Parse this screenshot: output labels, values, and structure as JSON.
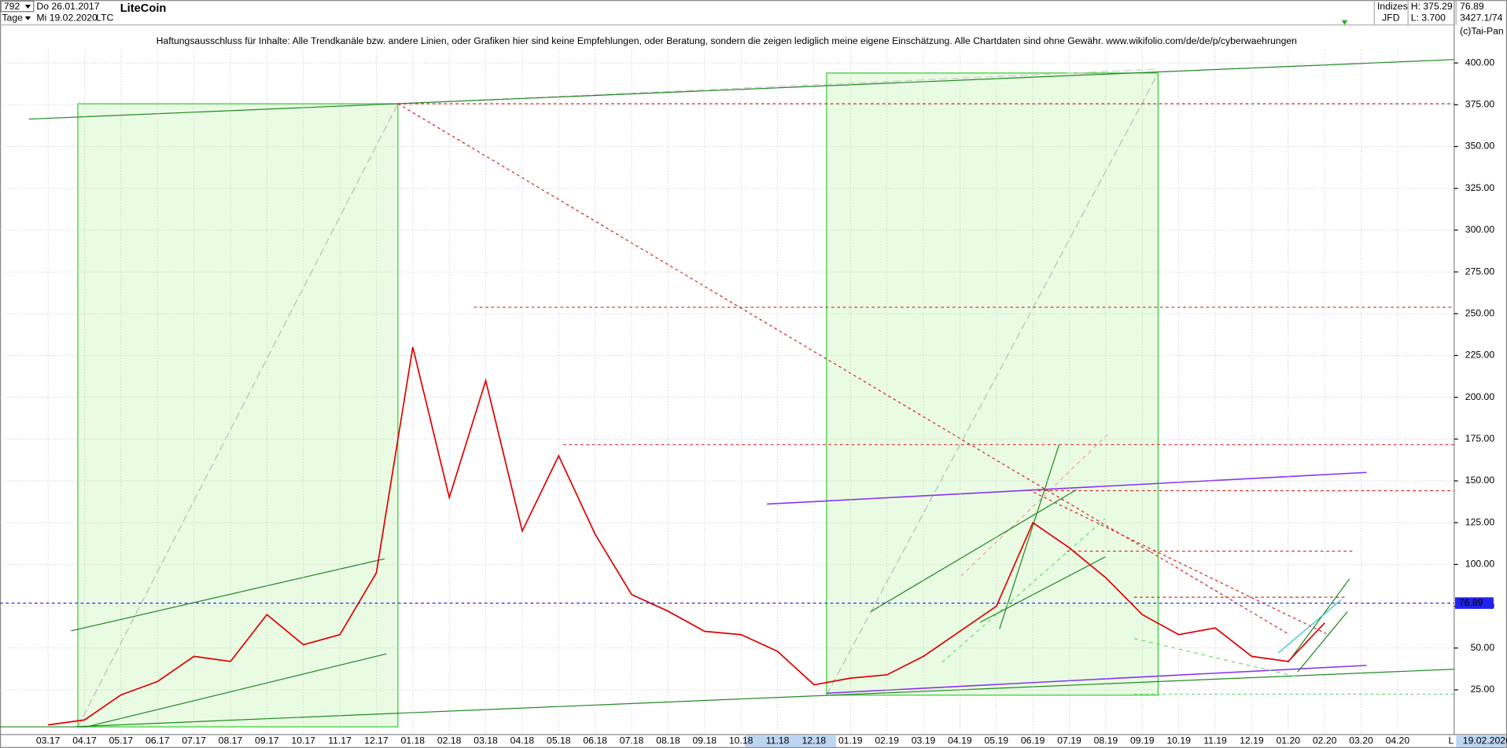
{
  "header": {
    "period": "792",
    "start_date": "Do 26.01.2017",
    "instrument": "LiteCoin",
    "interval": "Tage",
    "end_date": "Mi 19.02.2020",
    "symbol": "LTC",
    "market": "Indizes",
    "high": "H: 375.29",
    "last": "76.89",
    "broker": "JFD",
    "low": "L: 3.700",
    "ref": "3427.1/74",
    "copyright": "(c)Tai-Pan"
  },
  "chart_data": {
    "type": "line",
    "annotation": "Haftungsausschluss für Inhalte: Alle Trendkanäle bzw. andere Linien, oder Grafiken hier sind keine Empfehlungen, oder Beratung, sondern die zeigen lediglich meine eigene Einschätzung. Alle Chartdaten sind ohne Gewähr.  www.wikifolio.com/de/de/p/cyberwaehrungen",
    "categories": [
      "03.17",
      "04.17",
      "05.17",
      "06.17",
      "07.17",
      "08.17",
      "09.17",
      "10.17",
      "11.17",
      "12.17",
      "01.18",
      "02.18",
      "03.18",
      "04.18",
      "05.18",
      "06.18",
      "07.18",
      "08.18",
      "09.18",
      "10.18",
      "11.18",
      "12.18",
      "01.19",
      "02.19",
      "03.19",
      "04.19",
      "05.19",
      "06.19",
      "07.19",
      "08.19",
      "09.19",
      "10.19",
      "11.19",
      "12.19",
      "01.20",
      "02.20",
      "03.20",
      "04.20"
    ],
    "values": [
      4,
      7,
      22,
      30,
      45,
      42,
      70,
      52,
      58,
      95,
      230,
      140,
      210,
      120,
      165,
      118,
      82,
      72,
      60,
      58,
      48,
      28,
      32,
      34,
      45,
      60,
      75,
      125,
      110,
      92,
      70,
      58,
      62,
      45,
      42,
      65,
      null,
      null
    ],
    "color": "#e00000",
    "last_price": {
      "value": 76.89,
      "label": "76.89"
    },
    "current_date": "19.02.2020",
    "corner_label": "L",
    "ylim": [
      0,
      425
    ],
    "yticks": [
      {
        "value": 25,
        "label": "25.00"
      },
      {
        "value": 50,
        "label": "50.00"
      },
      {
        "value": 75,
        "label": "75.00"
      },
      {
        "value": 100,
        "label": "100.00"
      },
      {
        "value": 125,
        "label": "125.00"
      },
      {
        "value": 150,
        "label": "150.00"
      },
      {
        "value": 175,
        "label": "175.00"
      },
      {
        "value": 200,
        "label": "200.00"
      },
      {
        "value": 225,
        "label": "225.00"
      },
      {
        "value": 250,
        "label": "250.00"
      },
      {
        "value": 275,
        "label": "275.00"
      },
      {
        "value": 300,
        "label": "300.00"
      },
      {
        "value": 325,
        "label": "325.00"
      },
      {
        "value": 350,
        "label": "350.00"
      },
      {
        "value": 375,
        "label": "375.00"
      },
      {
        "value": 400,
        "label": "400.00"
      }
    ],
    "grid": true
  }
}
